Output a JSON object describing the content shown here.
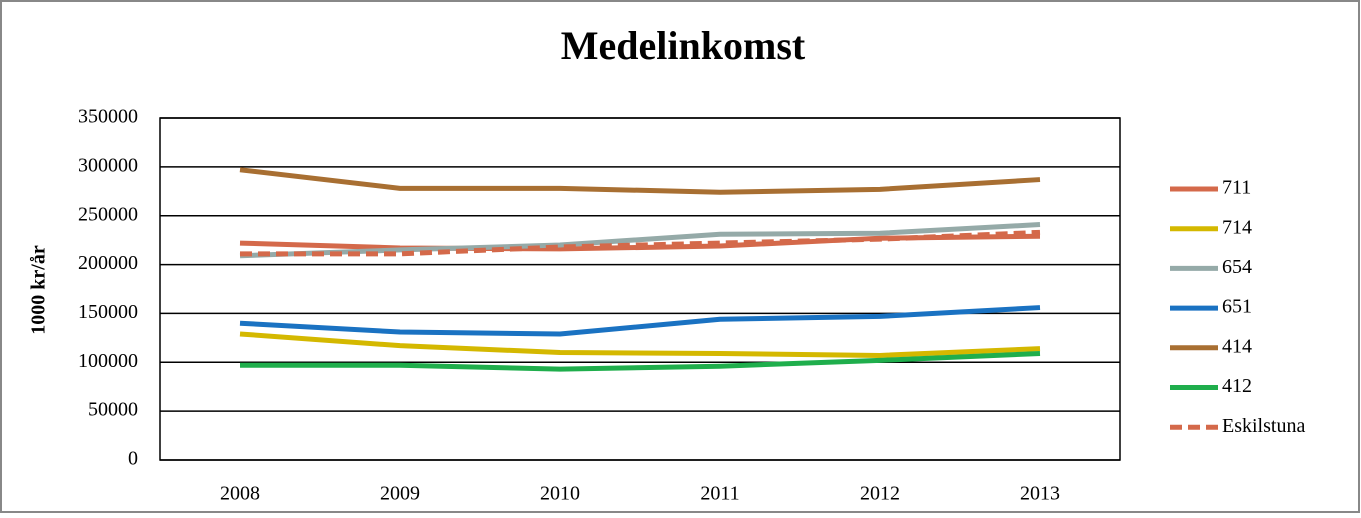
{
  "chart_data": {
    "type": "line",
    "title": "Medelinkomst",
    "y_label": "1000 kr/år",
    "categories": [
      "2008",
      "2009",
      "2010",
      "2011",
      "2012",
      "2013"
    ],
    "series": [
      {
        "name": "711",
        "color": "#d4694a",
        "values": [
          222000,
          217000,
          216000,
          219000,
          227000,
          229000
        ]
      },
      {
        "name": "714",
        "color": "#d4b800",
        "values": [
          129000,
          117000,
          110000,
          109000,
          107000,
          114000
        ]
      },
      {
        "name": "654",
        "color": "#95aaa8",
        "values": [
          209000,
          215000,
          220000,
          231000,
          232000,
          241000
        ]
      },
      {
        "name": "651",
        "color": "#1a72c2",
        "values": [
          140000,
          131000,
          129000,
          144000,
          147000,
          156000
        ]
      },
      {
        "name": "414",
        "color": "#a86f32",
        "values": [
          297000,
          278000,
          278000,
          274000,
          277000,
          287000
        ]
      },
      {
        "name": "412",
        "color": "#1fae4c",
        "values": [
          97000,
          97000,
          93000,
          96000,
          102000,
          109000
        ]
      },
      {
        "name": "Eskilstuna",
        "color": "#d4694a",
        "dashed": true,
        "values": [
          211000,
          211000,
          218000,
          222000,
          226000,
          233000
        ]
      }
    ],
    "ylim": [
      0,
      350000
    ],
    "yticks": [
      0,
      50000,
      100000,
      150000,
      200000,
      250000,
      300000,
      350000
    ],
    "grid": true,
    "legend": "right"
  }
}
